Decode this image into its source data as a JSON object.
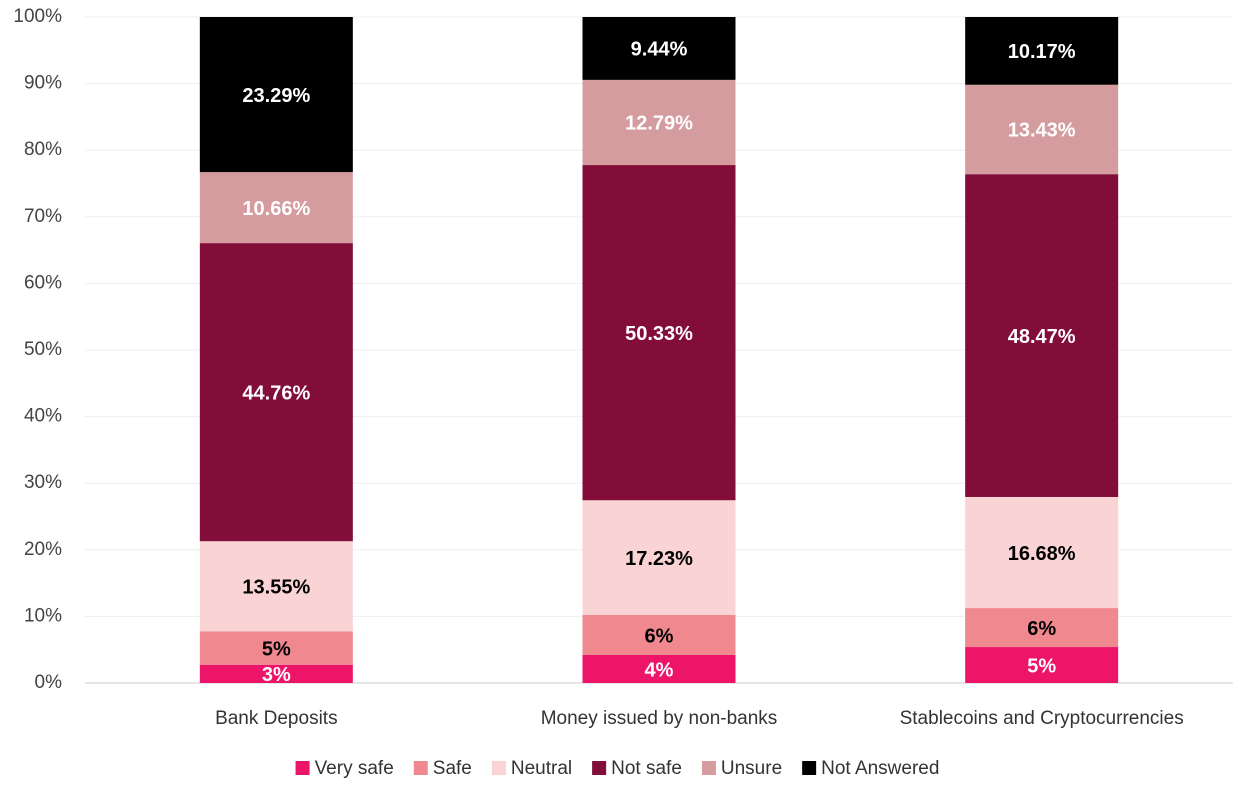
{
  "chart_data": {
    "type": "stacked_bar",
    "categories": [
      "Bank Deposits",
      "Money issued by non-banks",
      "Stablecoins and Cryptocurrencies"
    ],
    "series": [
      {
        "name": "Very safe",
        "color": "#ec1569",
        "label_color": "#ffffff",
        "values": [
          2.74,
          4.21,
          5.4
        ],
        "value_labels": [
          "3%",
          "4%",
          "5%"
        ]
      },
      {
        "name": "Safe",
        "color": "#f08890",
        "label_color": "#000000",
        "values": [
          5,
          6,
          5.85
        ],
        "value_labels": [
          "5%",
          "6%",
          "6%"
        ]
      },
      {
        "name": "Neutral",
        "color": "#fad4d4",
        "label_color": "#000000",
        "values": [
          13.55,
          17.23,
          16.68
        ],
        "value_labels": [
          "13.55%",
          "17.23%",
          "16.68%"
        ]
      },
      {
        "name": "Not safe",
        "color": "#820d38",
        "label_color": "#ffffff",
        "values": [
          44.76,
          50.33,
          48.47
        ],
        "value_labels": [
          "44.76%",
          "50.33%",
          "48.47%"
        ]
      },
      {
        "name": "Unsure",
        "color": "#d59ca0",
        "label_color": "#ffffff",
        "values": [
          10.66,
          12.79,
          13.43
        ],
        "value_labels": [
          "10.66%",
          "12.79%",
          "13.43%"
        ]
      },
      {
        "name": "Not Answered",
        "color": "#000000",
        "label_color": "#ffffff",
        "values": [
          23.29,
          9.44,
          10.17
        ],
        "value_labels": [
          "23.29%",
          "9.44%",
          "10.17%"
        ]
      }
    ],
    "ylim": [
      0,
      100
    ],
    "yticks": [
      {
        "value": 0,
        "label": "0%"
      },
      {
        "value": 10,
        "label": "10%"
      },
      {
        "value": 20,
        "label": "20%"
      },
      {
        "value": 30,
        "label": "30%"
      },
      {
        "value": 40,
        "label": "40%"
      },
      {
        "value": 50,
        "label": "50%"
      },
      {
        "value": 60,
        "label": "60%"
      },
      {
        "value": 70,
        "label": "70%"
      },
      {
        "value": 80,
        "label": "80%"
      },
      {
        "value": 90,
        "label": "90%"
      },
      {
        "value": 100,
        "label": "100%"
      }
    ],
    "grid": true,
    "legend": "bottom"
  }
}
